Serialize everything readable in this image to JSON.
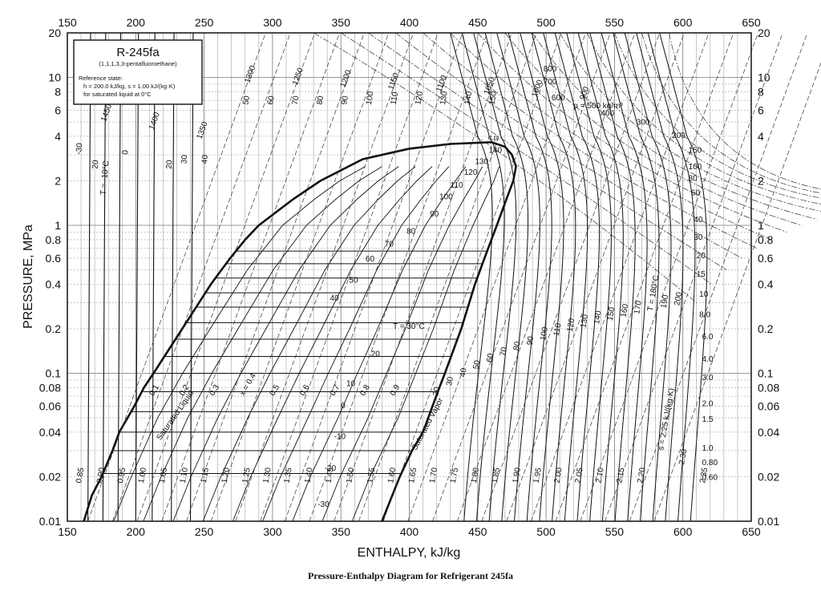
{
  "chart_data": {
    "type": "line",
    "title": "R-245fa",
    "subtitle": "(1,1,1,3,3-pentafluoroethane)",
    "reference_lines": [
      "Reference state:",
      "h = 200.0 kJ/kg,   s = 1.00 kJ/(kg·K)",
      "for saturated liquid at 0°C"
    ],
    "caption": "Pressure-Enthalpy Diagram for Refrigerant 245fa",
    "xlabel": "ENTHALPY, kJ/kg",
    "ylabel": "PRESSURE, MPa",
    "xlim": [
      150,
      650
    ],
    "ylim": [
      0.01,
      20
    ],
    "y_scale": "log",
    "grid": true,
    "x_ticks": [
      "150",
      "200",
      "250",
      "300",
      "350",
      "400",
      "450",
      "500",
      "550",
      "600",
      "650"
    ],
    "y_ticks": [
      "20",
      "10",
      "8",
      "6",
      "4",
      "2",
      "1",
      "0.8",
      "0.6",
      "0.4",
      "0.2",
      "0.1",
      "0.08",
      "0.06",
      "0.04",
      "0.02",
      "0.01"
    ],
    "critical_point": {
      "label": "c.p.",
      "h": 460,
      "p": 3.65
    },
    "series": [
      {
        "name": "Saturated Liquid",
        "points": [
          [
            162,
            0.01
          ],
          [
            168,
            0.015
          ],
          [
            175,
            0.02
          ],
          [
            183,
            0.03
          ],
          [
            188,
            0.04
          ],
          [
            199,
            0.06
          ],
          [
            206,
            0.08
          ],
          [
            213,
            0.1
          ],
          [
            234,
            0.2
          ],
          [
            255,
            0.4
          ],
          [
            269,
            0.6
          ],
          [
            280,
            0.8
          ],
          [
            290,
            1.0
          ],
          [
            315,
            1.5
          ],
          [
            335,
            2.0
          ],
          [
            366,
            2.8
          ],
          [
            400,
            3.3
          ],
          [
            430,
            3.55
          ],
          [
            460,
            3.65
          ]
        ]
      },
      {
        "name": "Saturated Vapor",
        "points": [
          [
            380,
            0.01
          ],
          [
            393,
            0.02
          ],
          [
            402,
            0.03
          ],
          [
            410,
            0.04
          ],
          [
            417,
            0.06
          ],
          [
            422,
            0.08
          ],
          [
            426,
            0.1
          ],
          [
            438,
            0.2
          ],
          [
            448,
            0.4
          ],
          [
            455,
            0.6
          ],
          [
            460,
            0.8
          ],
          [
            464,
            1.0
          ],
          [
            471,
            1.5
          ],
          [
            476,
            2.0
          ],
          [
            478,
            2.5
          ],
          [
            475,
            3.0
          ],
          [
            470,
            3.4
          ],
          [
            460,
            3.65
          ]
        ]
      }
    ],
    "quality_labels": [
      "0.1",
      "0.2",
      "0.3",
      "x = 0.4",
      "0.5",
      "0.6",
      "0.7",
      "0.8",
      "0.9"
    ],
    "isotherm_labels_two_phase": [
      "T = 30°C",
      "20",
      "10",
      "0",
      "-10",
      "-20",
      "-30",
      "40",
      "50",
      "60",
      "70",
      "80",
      "90",
      "100",
      "110",
      "120",
      "130",
      "140"
    ],
    "isotherm_labels_liquid": [
      "-30",
      "20",
      "T = -10°C",
      "0",
      "20",
      "30",
      "40"
    ],
    "isotherm_labels_vapor": [
      "20",
      "30",
      "40",
      "50",
      "60",
      "70",
      "80",
      "90",
      "100",
      "110",
      "120",
      "130",
      "140",
      "150",
      "160",
      "170",
      "T = 180°C",
      "190",
      "200"
    ],
    "entropy_labels_bottom": [
      "0.85",
      "0.90",
      "0.95",
      "1.00",
      "1.05",
      "1.10",
      "1.15",
      "1.20",
      "1.25",
      "1.30",
      "1.35",
      "1.40",
      "1.45",
      "1.50",
      "1.55",
      "1.60",
      "1.65",
      "1.70",
      "1.75",
      "1.80",
      "1.85",
      "1.90",
      "1.95",
      "2.00",
      "2.05",
      "2.10",
      "2.15",
      "2.20",
      "s = 2.25 kJ/(kg·K)",
      "2.30",
      "2.35"
    ],
    "entropy_labels_top": [
      "1450",
      "1400",
      "1350",
      "1300",
      "1250",
      "1200",
      "1150",
      "1100",
      "1050",
      "1000",
      "900"
    ],
    "density_labels_top": [
      "50",
      "60",
      "70",
      "80",
      "90",
      "100",
      "110",
      "120",
      "130",
      "140",
      "150"
    ],
    "density_labels_vapor": [
      "800",
      "700",
      "600",
      "ρ = 500 kg/m³",
      "400",
      "300",
      "200",
      "150",
      "100",
      "80",
      "60",
      "40",
      "30",
      "20",
      "15",
      "10",
      "8.0",
      "6.0",
      "4.0",
      "3.0",
      "2.0",
      "1.5",
      "1.0",
      "0.80",
      "0.60"
    ]
  }
}
